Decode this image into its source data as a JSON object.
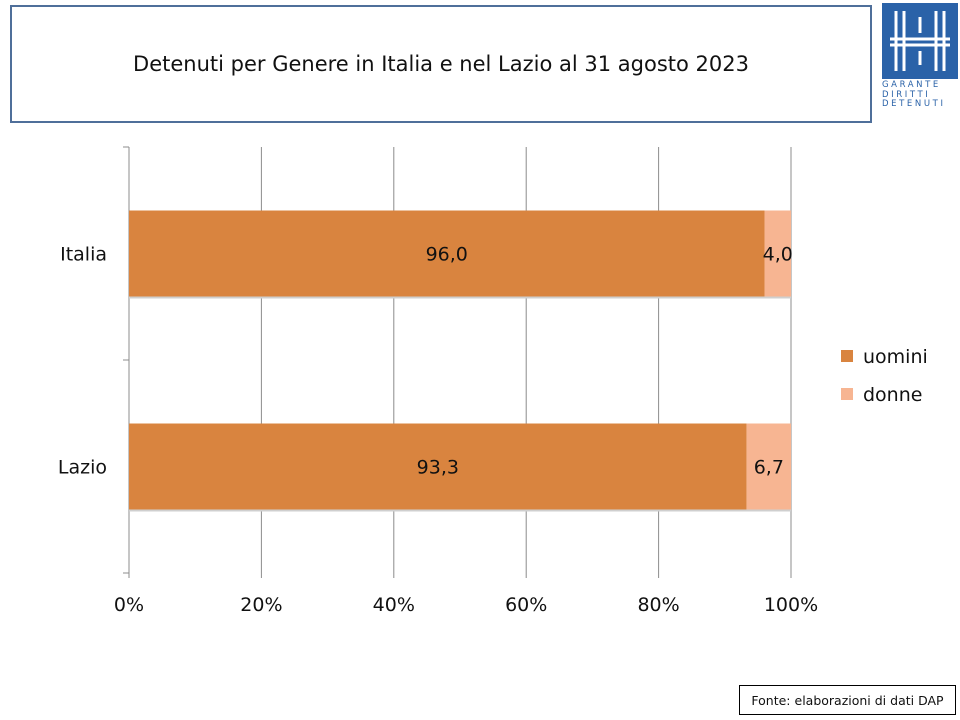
{
  "title": "Detenuti per Genere in Italia e nel Lazio al 31 agosto 2023",
  "logo": {
    "lines": [
      "GARANTE",
      "DIRITTI",
      "DETENUTI"
    ],
    "icon": "garante-logo-icon",
    "color": "#2a62a8"
  },
  "source": "Fonte: elaborazioni di dati DAP",
  "chart_data": {
    "type": "bar",
    "orientation": "horizontal",
    "stacked": "percent",
    "title": "Detenuti per Genere in Italia e nel Lazio al 31 agosto 2023",
    "categories": [
      "Italia",
      "Lazio"
    ],
    "series": [
      {
        "name": "uomini",
        "values": [
          96.0,
          93.3
        ],
        "labels": [
          "96,0",
          "93,3"
        ],
        "color": "#d9843f"
      },
      {
        "name": "donne",
        "values": [
          4.0,
          6.7
        ],
        "labels": [
          "4,0",
          "6,7"
        ],
        "color": "#f7b592"
      }
    ],
    "xlim": [
      0,
      100
    ],
    "xticks": [
      "0%",
      "20%",
      "40%",
      "60%",
      "80%",
      "100%"
    ],
    "xlabel": "",
    "ylabel": "",
    "grid": true,
    "legend": "right"
  }
}
